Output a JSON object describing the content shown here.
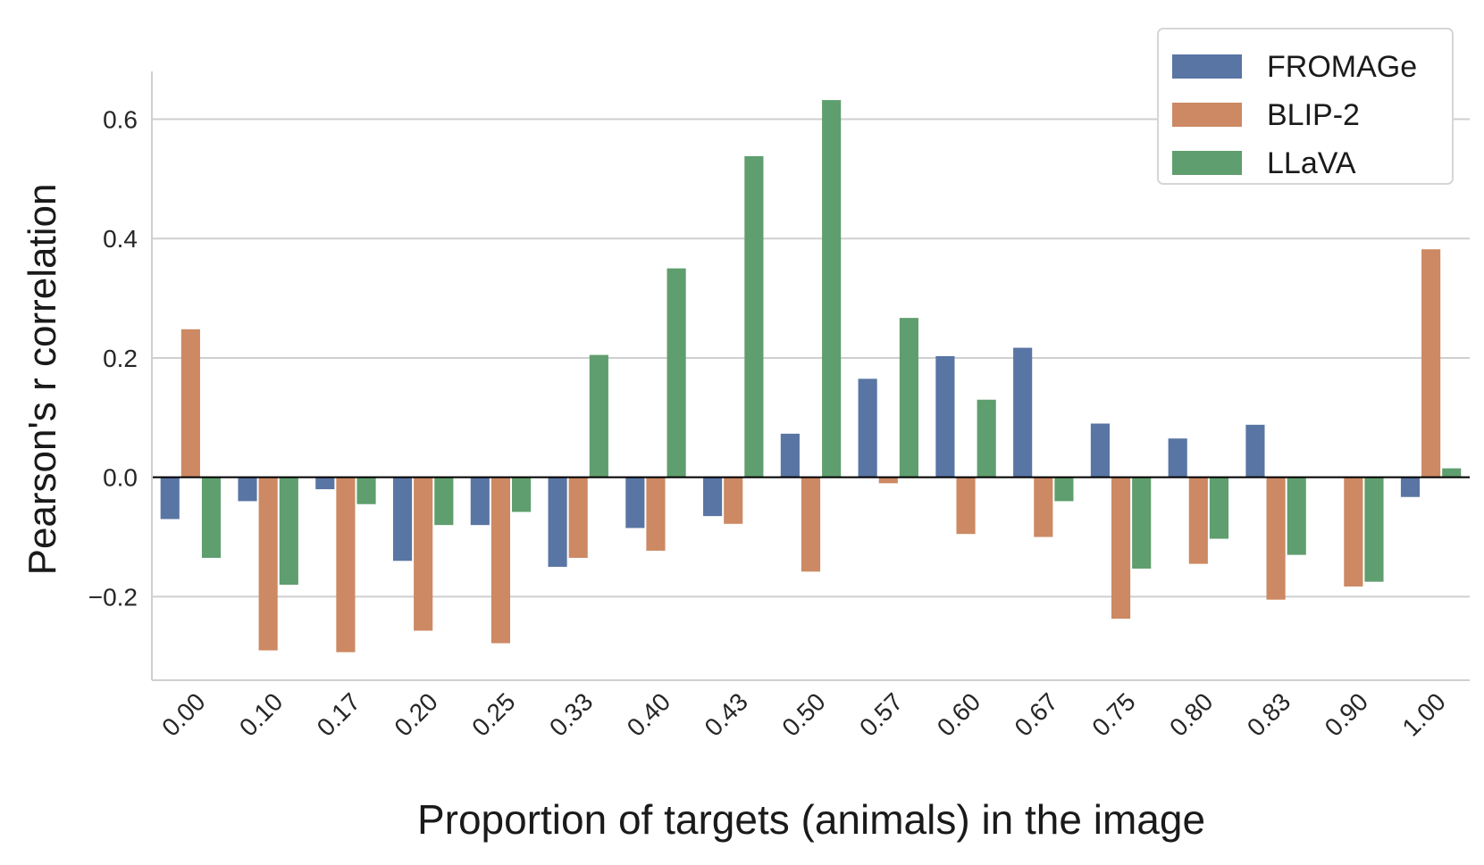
{
  "chart_data": {
    "type": "bar",
    "xlabel": "Proportion of targets (animals) in the image",
    "ylabel": "Pearson's r correlation",
    "ylim": [
      -0.34,
      0.68
    ],
    "yticks": [
      -0.2,
      0.0,
      0.2,
      0.4,
      0.6
    ],
    "ytick_labels": [
      "−0.2",
      "0.0",
      "0.2",
      "0.4",
      "0.6"
    ],
    "grid": true,
    "legend_position": "top-right",
    "categories": [
      "0.00",
      "0.10",
      "0.17",
      "0.20",
      "0.25",
      "0.33",
      "0.40",
      "0.43",
      "0.50",
      "0.57",
      "0.60",
      "0.67",
      "0.75",
      "0.80",
      "0.83",
      "0.90",
      "1.00"
    ],
    "series": [
      {
        "name": "FROMAGe",
        "color": "#5975a4",
        "values": [
          -0.07,
          -0.04,
          -0.02,
          -0.14,
          -0.08,
          -0.15,
          -0.085,
          -0.065,
          0.073,
          0.165,
          0.203,
          0.217,
          0.09,
          0.065,
          0.088,
          0.0,
          -0.033
        ]
      },
      {
        "name": "BLIP-2",
        "color": "#cc8963",
        "values": [
          0.248,
          -0.29,
          -0.293,
          -0.257,
          -0.278,
          -0.135,
          -0.123,
          -0.078,
          -0.158,
          -0.01,
          -0.095,
          -0.1,
          -0.237,
          -0.145,
          -0.205,
          -0.183,
          0.382
        ]
      },
      {
        "name": "LLaVA",
        "color": "#5f9e6e",
        "values": [
          -0.135,
          -0.18,
          -0.045,
          -0.08,
          -0.058,
          0.205,
          0.35,
          0.538,
          0.632,
          0.267,
          0.13,
          -0.04,
          -0.153,
          -0.103,
          -0.13,
          -0.175,
          0.015
        ]
      }
    ]
  }
}
